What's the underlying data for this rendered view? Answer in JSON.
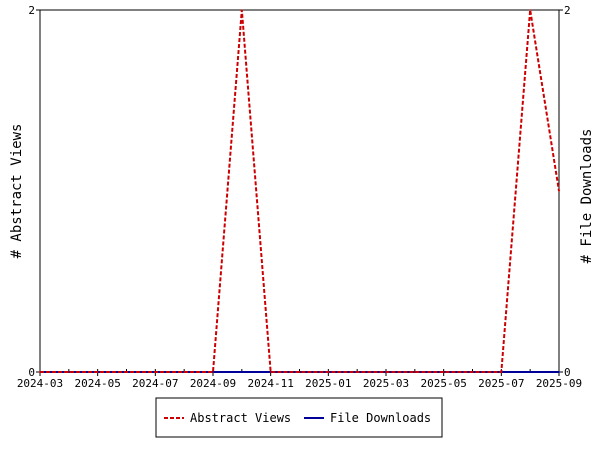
{
  "chart_data": {
    "type": "line",
    "x_categories": [
      "2024-03",
      "2024-04",
      "2024-05",
      "2024-06",
      "2024-07",
      "2024-08",
      "2024-09",
      "2024-10",
      "2024-11",
      "2024-12",
      "2025-01",
      "2025-02",
      "2025-03",
      "2025-04",
      "2025-05",
      "2025-06",
      "2025-07",
      "2025-08",
      "2025-09"
    ],
    "x_tick_labels": [
      "2024-03",
      "2024-05",
      "2024-07",
      "2024-09",
      "2024-11",
      "2025-01",
      "2025-03",
      "2025-05",
      "2025-07",
      "2025-09"
    ],
    "y_left_label": "# Abstract Views",
    "y_right_label": "# File Downloads",
    "y_left_ticks": [
      "0",
      "2"
    ],
    "y_right_ticks": [
      "0",
      "2"
    ],
    "ylim": [
      0,
      2
    ],
    "series": [
      {
        "name": "Abstract Views",
        "color": "#cc0000",
        "style": "dashed",
        "axis": "left",
        "points": [
          {
            "x": "2024-03",
            "y": 0
          },
          {
            "x": "2024-04",
            "y": 0
          },
          {
            "x": "2024-05",
            "y": 0
          },
          {
            "x": "2024-06",
            "y": 0
          },
          {
            "x": "2024-07",
            "y": 0
          },
          {
            "x": "2024-08",
            "y": 0
          },
          {
            "x": "2024-09",
            "y": 0
          },
          {
            "x": "2024-10",
            "y": 2
          },
          {
            "x": "2024-11",
            "y": 0
          },
          {
            "x": "2024-12",
            "y": 0
          },
          {
            "x": "2025-01",
            "y": 0
          },
          {
            "x": "2025-02",
            "y": 0
          },
          {
            "x": "2025-03",
            "y": 0
          },
          {
            "x": "2025-04",
            "y": 0
          },
          {
            "x": "2025-05",
            "y": 0
          },
          {
            "x": "2025-06",
            "y": 0
          },
          {
            "x": "2025-07",
            "y": 0
          },
          {
            "x": "2025-08",
            "y": 2
          },
          {
            "x": "2025-09",
            "y": 1
          }
        ]
      },
      {
        "name": "File Downloads",
        "color": "#000099",
        "style": "solid",
        "axis": "right",
        "points": [
          {
            "x": "2024-03",
            "y": 0
          },
          {
            "x": "2024-04",
            "y": 0
          },
          {
            "x": "2024-05",
            "y": 0
          },
          {
            "x": "2024-06",
            "y": 0
          },
          {
            "x": "2024-07",
            "y": 0
          },
          {
            "x": "2024-08",
            "y": 0
          },
          {
            "x": "2024-09",
            "y": 0
          },
          {
            "x": "2024-10",
            "y": 0
          },
          {
            "x": "2024-11",
            "y": 0
          },
          {
            "x": "2024-12",
            "y": 0
          },
          {
            "x": "2025-01",
            "y": 0
          },
          {
            "x": "2025-02",
            "y": 0
          },
          {
            "x": "2025-03",
            "y": 0
          },
          {
            "x": "2025-04",
            "y": 0
          },
          {
            "x": "2025-05",
            "y": 0
          },
          {
            "x": "2025-06",
            "y": 0
          },
          {
            "x": "2025-07",
            "y": 0
          },
          {
            "x": "2025-08",
            "y": 0
          },
          {
            "x": "2025-09",
            "y": 0
          }
        ]
      }
    ],
    "legend": {
      "position": "bottom-center",
      "entries": [
        "Abstract Views",
        "File Downloads"
      ]
    },
    "grid": false
  }
}
